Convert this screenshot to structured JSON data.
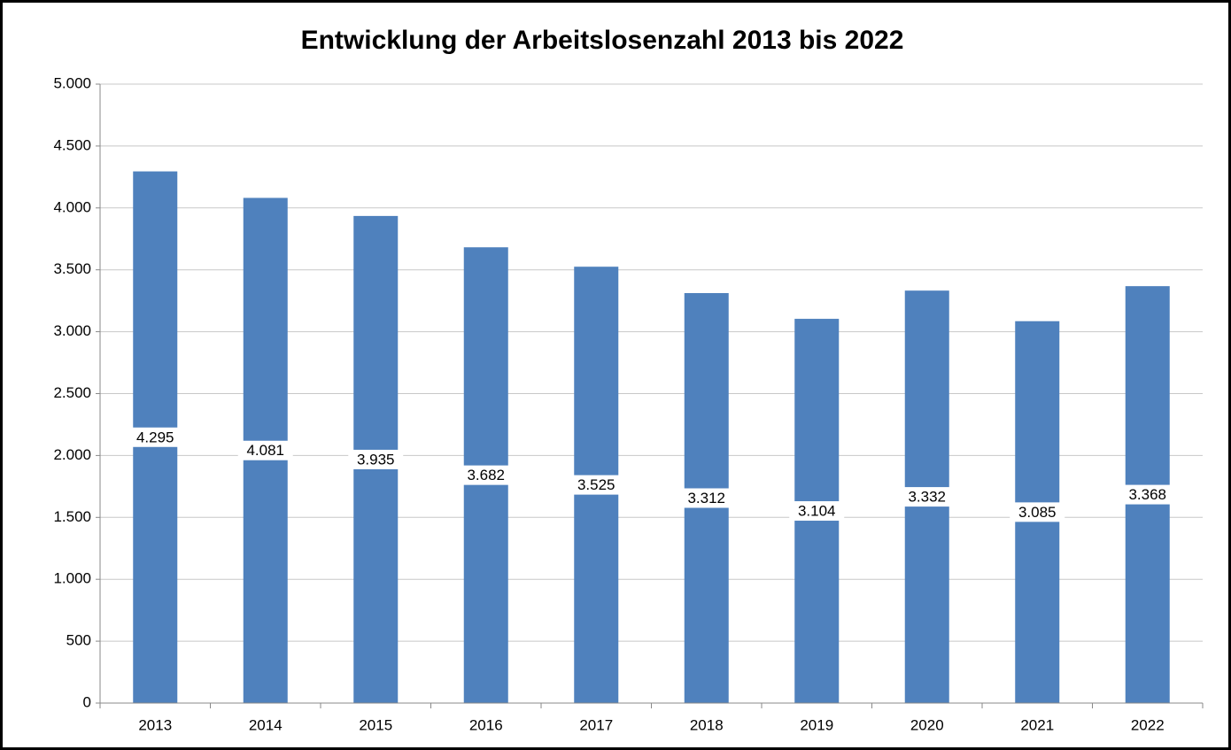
{
  "chart_data": {
    "type": "bar",
    "title": "Entwicklung der Arbeitslosenzahl 2013 bis 2022",
    "categories": [
      "2013",
      "2014",
      "2015",
      "2016",
      "2017",
      "2018",
      "2019",
      "2020",
      "2021",
      "2022"
    ],
    "values": [
      4295,
      4081,
      3935,
      3682,
      3525,
      3312,
      3104,
      3332,
      3085,
      3368
    ],
    "value_labels": [
      "4.295",
      "4.081",
      "3.935",
      "3.682",
      "3.525",
      "3.312",
      "3.104",
      "3.332",
      "3.085",
      "3.368"
    ],
    "color": "#4f81bd",
    "ylim": [
      0,
      5000
    ],
    "yticks": [
      0,
      500,
      {
        "value": 1000,
        "label": "1.000"
      },
      {
        "value": 1500,
        "label": "1.500"
      },
      {
        "value": 2000,
        "label": "2.000"
      },
      {
        "value": 2500,
        "label": "2.500"
      },
      {
        "value": 3000,
        "label": "3.000"
      },
      {
        "value": 3500,
        "label": "3.500"
      },
      {
        "value": 4000,
        "label": "4.000"
      },
      {
        "value": 4500,
        "label": "4.500"
      },
      {
        "value": 5000,
        "label": "5.000"
      }
    ],
    "grid": true
  }
}
